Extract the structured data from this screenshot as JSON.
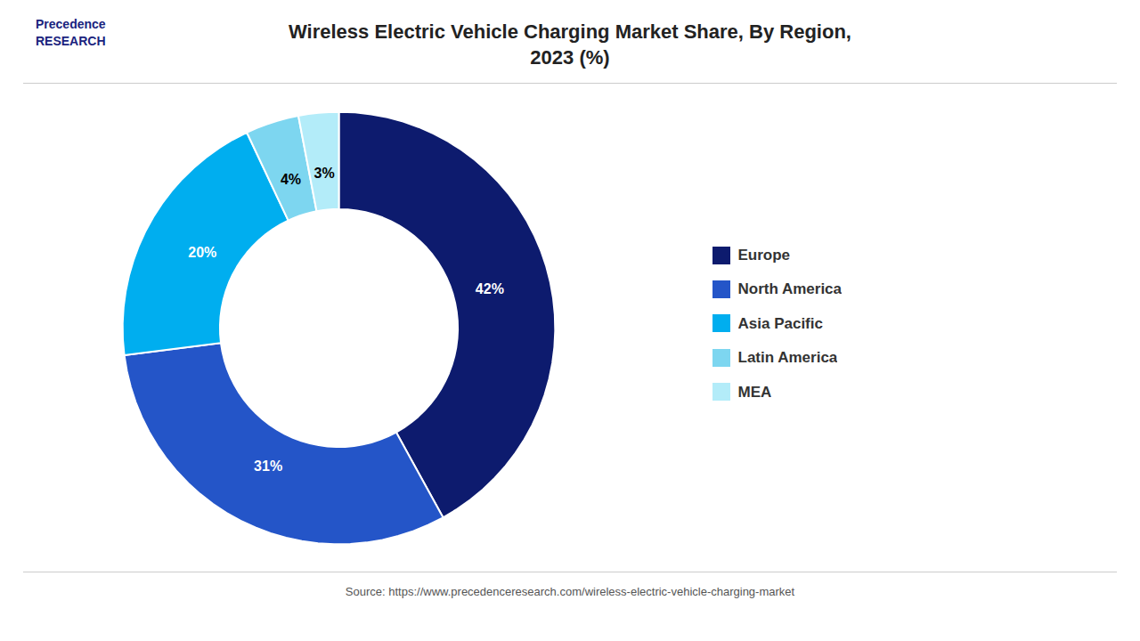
{
  "chart_data": {
    "type": "pie",
    "title": "Wireless Electric Vehicle Charging Market Share, By Region,\n2023 (%)",
    "categories": [
      "Europe",
      "North America",
      "Asia Pacific",
      "Latin America",
      "MEA"
    ],
    "values": [
      42,
      31,
      20,
      4,
      3
    ],
    "value_labels": [
      "42%",
      "31%",
      "20%",
      "4%",
      "3%"
    ],
    "colors": [
      "#0d1b6e",
      "#2455c8",
      "#00aeef",
      "#7dd6f0",
      "#b3ecf9"
    ],
    "data_labels": true,
    "legend": "right",
    "annotations": [
      "Precedence\nRESEARCH",
      "Source: https://www.precedenceresearch.com/wireless-electric-vehicle-charging-market"
    ]
  }
}
